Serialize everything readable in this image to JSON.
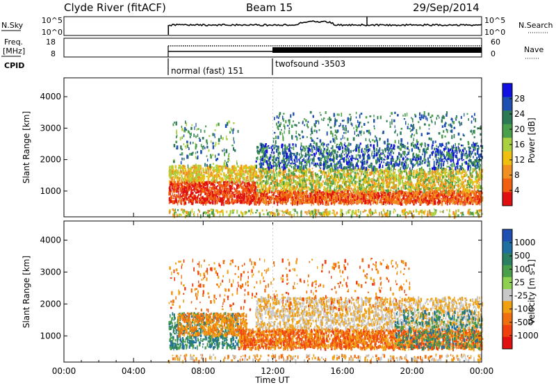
{
  "header": {
    "station": "Clyde River (fitACF)",
    "beam": "Beam 15",
    "date": "29/Sep/2014"
  },
  "top_panels": {
    "nsky": {
      "label": "N.Sky",
      "ticks": [
        "10^5",
        "10^0"
      ],
      "right_label": "N.Search",
      "right_ticks": [
        "10^5",
        "10^0"
      ]
    },
    "freq": {
      "label_line1": "Freq.",
      "label_line2": "[MHz]",
      "ticks": [
        "18",
        "8"
      ],
      "right_label": "Nave",
      "right_ticks": [
        "60",
        "0"
      ]
    },
    "cpid": {
      "label": "CPID",
      "segments": [
        {
          "label": "normal (fast) 151",
          "start_hour": 6
        },
        {
          "label": "twofsound -3503",
          "start_hour": 12
        }
      ]
    }
  },
  "colors": {
    "power": [
      "#1010e0",
      "#1f4fb0",
      "#2b7a55",
      "#4aa04a",
      "#a8d040",
      "#f0c010",
      "#f09020",
      "#f06010",
      "#e01010"
    ],
    "velocity": [
      "#1f4fb0",
      "#1f6fa0",
      "#2a8060",
      "#4aa04a",
      "#90d050",
      "#c8c8c8",
      "#f0a010",
      "#f07010",
      "#f04010",
      "#e01010"
    ]
  },
  "chart_data": [
    {
      "type": "heatmap",
      "name": "power",
      "ylabel": "Slant Range [km]",
      "yticks": [
        1000,
        2000,
        3000,
        4000
      ],
      "ylim": [
        180,
        4600
      ],
      "xlim": [
        0,
        24
      ],
      "colorbar": {
        "label": "Power [dB]",
        "ticks": [
          "28",
          "24",
          "20",
          "16",
          "12",
          "8",
          "4"
        ]
      }
    },
    {
      "type": "heatmap",
      "name": "velocity",
      "ylabel": "Slant Range [km]",
      "yticks": [
        1000,
        2000,
        3000,
        4000
      ],
      "ylim": [
        180,
        4600
      ],
      "xlim": [
        0,
        24
      ],
      "xlabel": "Time UT",
      "xticks": [
        "00:00",
        "04:00",
        "08:00",
        "12:00",
        "16:00",
        "20:00",
        "00:00"
      ],
      "colorbar": {
        "label": "Velocity [m s-1]",
        "ticks": [
          "1000",
          "500",
          "100",
          "25",
          "-25",
          "-100",
          "-500",
          "-1000"
        ]
      }
    }
  ]
}
